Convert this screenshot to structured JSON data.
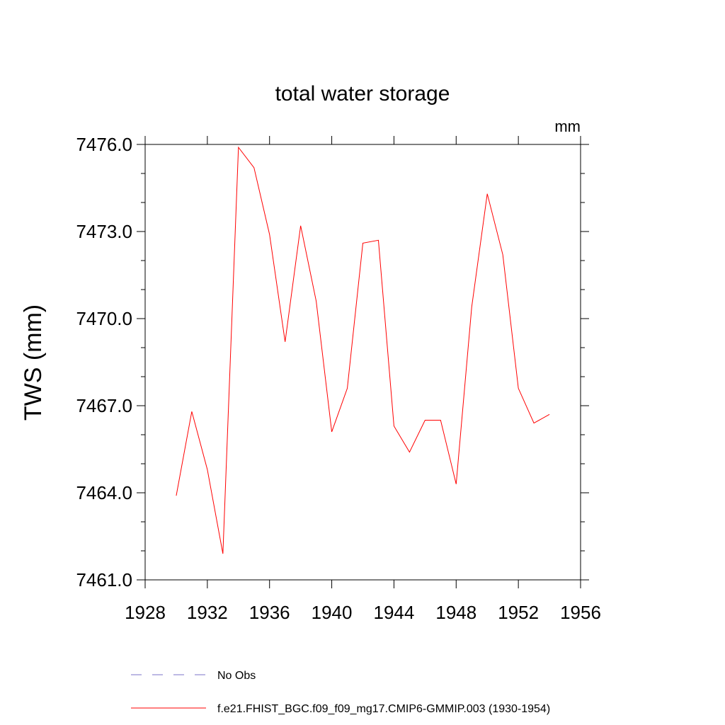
{
  "chart_data": {
    "type": "line",
    "title": "total water storage",
    "units_label": "mm",
    "ylabel": "TWS  (mm)",
    "xlabel": "",
    "xlim": [
      1928,
      1956
    ],
    "ylim": [
      7461.0,
      7476.0
    ],
    "x_major_ticks": [
      1928,
      1932,
      1936,
      1940,
      1944,
      1948,
      1952,
      1956
    ],
    "x_tick_labels": [
      "1928",
      "1932",
      "1936",
      "1940",
      "1944",
      "1948",
      "1952",
      "1956"
    ],
    "y_major_ticks": [
      7461.0,
      7464.0,
      7467.0,
      7470.0,
      7473.0,
      7476.0
    ],
    "y_tick_labels": [
      "7461.0",
      "7464.0",
      "7467.0",
      "7470.0",
      "7473.0",
      "7476.0"
    ],
    "grid": false,
    "series": [
      {
        "name": "f.e21.FHIST_BGC.f09_f09_mg17.CMIP6-GMMIP.003 (1930-1954)",
        "color": "#ff0000",
        "style": "solid",
        "x": [
          1930,
          1931,
          1932,
          1933,
          1934,
          1935,
          1936,
          1937,
          1938,
          1939,
          1940,
          1941,
          1942,
          1943,
          1944,
          1945,
          1946,
          1947,
          1948,
          1949,
          1950,
          1951,
          1952,
          1953,
          1954
        ],
        "values": [
          7463.9,
          7466.8,
          7464.8,
          7461.9,
          7475.9,
          7475.2,
          7472.9,
          7469.2,
          7473.2,
          7470.6,
          7466.1,
          7467.6,
          7472.6,
          7472.7,
          7466.3,
          7465.4,
          7466.5,
          7466.5,
          7464.3,
          7470.4,
          7474.3,
          7472.2,
          7467.6,
          7466.4,
          7466.7
        ]
      }
    ],
    "legend": [
      {
        "label": "No Obs",
        "color": "#7b73c9",
        "style": "dashed"
      },
      {
        "label": "f.e21.FHIST_BGC.f09_f09_mg17.CMIP6-GMMIP.003 (1930-1954)",
        "color": "#ff0000",
        "style": "solid"
      }
    ]
  }
}
